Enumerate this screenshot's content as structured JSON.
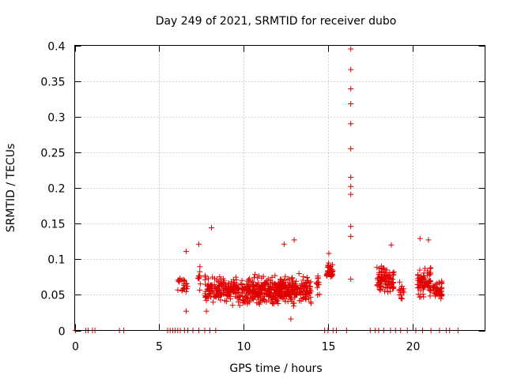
{
  "chart_data": {
    "type": "scatter",
    "title": "Day 249 of 2021, SRMTID for receiver dubo",
    "xlabel": "GPS time / hours",
    "ylabel": "SRMTID / TECUs",
    "xlim": [
      0,
      24.3
    ],
    "ylim": [
      0,
      0.4
    ],
    "x_ticks": [
      0,
      5,
      10,
      15,
      20
    ],
    "x_tick_labels": [
      "0",
      "5",
      "10",
      "15",
      "20"
    ],
    "y_ticks": [
      0,
      0.05,
      0.1,
      0.15,
      0.2,
      0.25,
      0.3,
      0.35,
      0.4
    ],
    "y_tick_labels": [
      "0",
      "0.05",
      "0.1",
      "0.15",
      "0.2",
      "0.25",
      "0.3",
      "0.35",
      "0.4"
    ],
    "grid": true,
    "marker": "+",
    "marker_color": "#e00000",
    "zero_points_x": [
      0.05,
      0.65,
      0.8,
      1.05,
      1.2,
      2.65,
      2.9,
      5.5,
      5.65,
      5.8,
      5.95,
      6.1,
      6.25,
      6.5,
      6.7,
      7.0,
      7.35,
      7.7,
      8.0,
      8.35,
      14.8,
      15.0,
      15.3,
      15.5,
      16.1,
      17.5,
      17.8,
      18.0,
      18.3,
      18.7,
      19.0,
      19.3,
      19.7,
      20.2,
      20.6,
      21.1,
      21.6,
      22.0,
      22.2,
      22.7
    ],
    "spike_points": [
      {
        "x": 16.35,
        "y": 0.395
      },
      {
        "x": 16.35,
        "y": 0.366
      },
      {
        "x": 16.35,
        "y": 0.339
      },
      {
        "x": 16.35,
        "y": 0.318
      },
      {
        "x": 16.35,
        "y": 0.29
      },
      {
        "x": 16.35,
        "y": 0.255
      },
      {
        "x": 16.35,
        "y": 0.215
      },
      {
        "x": 16.35,
        "y": 0.202
      },
      {
        "x": 16.35,
        "y": 0.191
      },
      {
        "x": 16.35,
        "y": 0.146
      },
      {
        "x": 16.35,
        "y": 0.132
      },
      {
        "x": 16.35,
        "y": 0.072
      },
      {
        "x": 8.1,
        "y": 0.144
      },
      {
        "x": 13.0,
        "y": 0.127
      },
      {
        "x": 12.4,
        "y": 0.121
      },
      {
        "x": 7.35,
        "y": 0.121
      },
      {
        "x": 6.6,
        "y": 0.111
      },
      {
        "x": 20.45,
        "y": 0.129
      },
      {
        "x": 20.95,
        "y": 0.127
      },
      {
        "x": 18.75,
        "y": 0.12
      },
      {
        "x": 15.05,
        "y": 0.108
      },
      {
        "x": 7.8,
        "y": 0.027
      },
      {
        "x": 12.8,
        "y": 0.016
      },
      {
        "x": 6.6,
        "y": 0.027
      }
    ],
    "clusters": [
      {
        "x_start": 6.1,
        "x_end": 6.7,
        "y_center": 0.065,
        "y_spread": 0.02,
        "count": 26
      },
      {
        "x_start": 7.3,
        "x_end": 7.45,
        "y_center": 0.075,
        "y_spread": 0.03,
        "count": 10
      },
      {
        "x_start": 7.7,
        "x_end": 14.0,
        "y_center": 0.057,
        "y_spread": 0.026,
        "count": 600
      },
      {
        "x_start": 14.3,
        "x_end": 14.5,
        "y_center": 0.065,
        "y_spread": 0.02,
        "count": 12
      },
      {
        "x_start": 14.9,
        "x_end": 15.3,
        "y_center": 0.082,
        "y_spread": 0.016,
        "count": 32
      },
      {
        "x_start": 17.9,
        "x_end": 18.9,
        "y_center": 0.072,
        "y_spread": 0.026,
        "count": 95
      },
      {
        "x_start": 19.2,
        "x_end": 19.5,
        "y_center": 0.055,
        "y_spread": 0.016,
        "count": 16
      },
      {
        "x_start": 20.3,
        "x_end": 21.1,
        "y_center": 0.067,
        "y_spread": 0.026,
        "count": 80
      },
      {
        "x_start": 21.2,
        "x_end": 21.75,
        "y_center": 0.057,
        "y_spread": 0.018,
        "count": 50
      }
    ]
  }
}
